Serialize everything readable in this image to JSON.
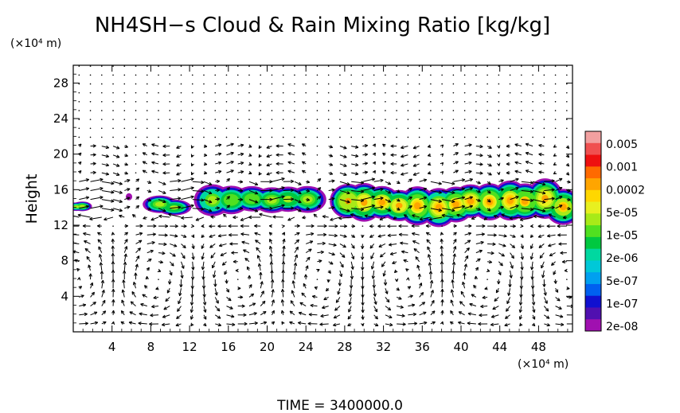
{
  "chart_data": {
    "type": "heatmap",
    "title": "NH4SH−s Cloud & Rain Mixing Ratio [kg/kg]",
    "ylabel": "Height",
    "xlabel": "",
    "y_unit": "(×10⁴ m)",
    "x_unit": "(×10⁴ m)",
    "xlim": [
      0,
      51.5
    ],
    "ylim": [
      0,
      30
    ],
    "x_ticks": [
      4,
      8,
      12,
      16,
      20,
      24,
      28,
      32,
      36,
      40,
      44,
      48
    ],
    "x_tick_labels": [
      "4",
      "8",
      "12",
      "16",
      "20",
      "24",
      "28",
      "32",
      "36",
      "40",
      "44",
      "48"
    ],
    "y_ticks": [
      4,
      8,
      12,
      16,
      20,
      24,
      28
    ],
    "y_tick_labels": [
      "4",
      "8",
      "12",
      "16",
      "20",
      "24",
      "28"
    ],
    "colorbar": {
      "labels": [
        "0.005",
        "0.001",
        "0.0002",
        "5e-05",
        "1e-05",
        "2e-06",
        "5e-07",
        "1e-07",
        "2e-08"
      ],
      "colors_top_to_bottom": [
        "#f2a0a0",
        "#f05050",
        "#ee1010",
        "#ff6a00",
        "#ffa500",
        "#ffd700",
        "#e8f020",
        "#a8ea18",
        "#50e020",
        "#00c840",
        "#00d8a0",
        "#00c8d8",
        "#00a0f0",
        "#0060f0",
        "#1010d0",
        "#5010b0",
        "#a010b0"
      ]
    },
    "cloud_band": {
      "height_range": [
        12.5,
        16.5
      ],
      "clouds": [
        {
          "x": [
            0,
            1.4
          ],
          "y": [
            13.5,
            14.6
          ],
          "peak": "5e-05"
        },
        {
          "x": [
            5.5,
            6.0
          ],
          "y": [
            14.8,
            15.6
          ],
          "peak": "2e-08"
        },
        {
          "x": [
            8.0,
            11.4
          ],
          "y": [
            13.0,
            15.0
          ],
          "peak": "5e-05"
        },
        {
          "x": [
            13.6,
            25.0
          ],
          "y": [
            13.0,
            16.2
          ],
          "peak": "5e-05"
        },
        {
          "x": [
            27.2,
            51.5
          ],
          "y": [
            12.3,
            16.3
          ],
          "peak": "0.0002"
        }
      ]
    },
    "wind_vectors": true
  },
  "footer": {
    "time_text": "TIME  =  3400000.0"
  }
}
